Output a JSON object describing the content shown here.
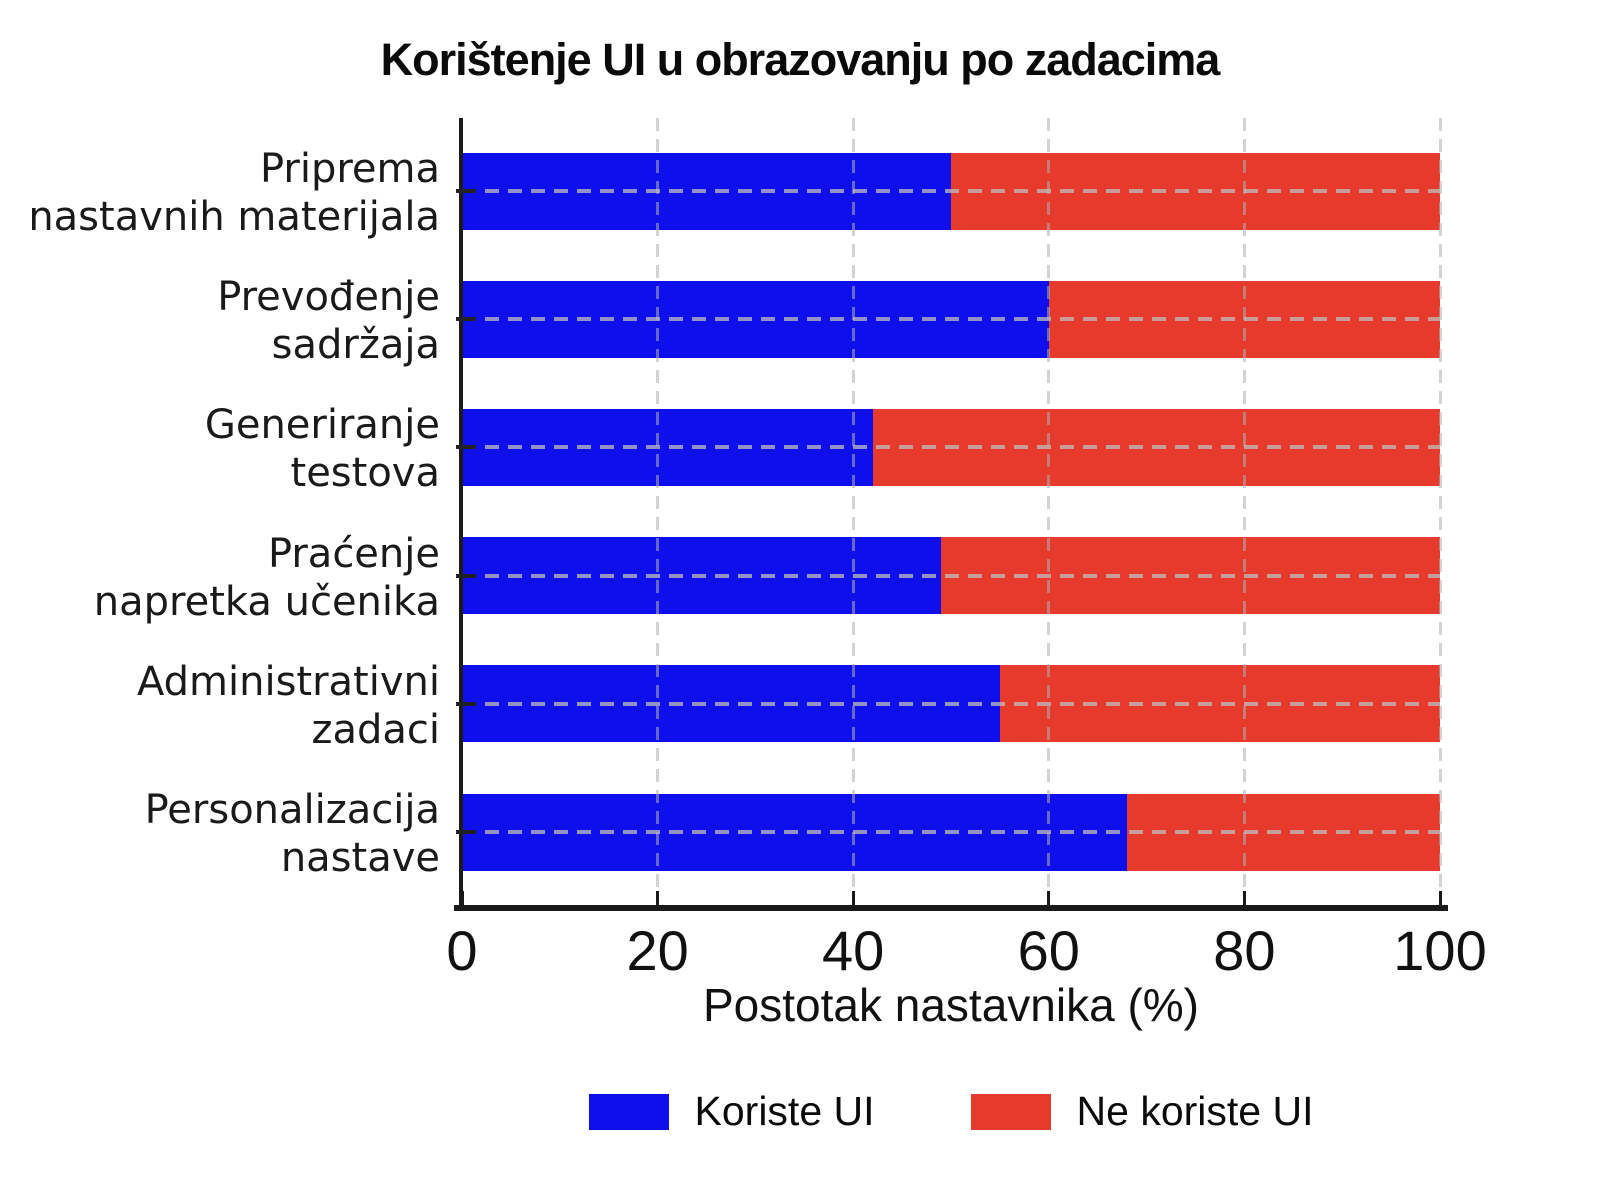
{
  "chart_data": {
    "type": "bar",
    "orientation": "horizontal",
    "stacked": true,
    "title": "Korištenje UI u obrazovanju po zadacima",
    "xlabel": "Postotak nastavnika (%)",
    "categories": [
      "Priprema nastavnih materijala",
      "Prevođenje sadržaja",
      "Generiranje testova",
      "Praćenje napretka učenika",
      "Administrativni zadaci",
      "Personalizacija nastave"
    ],
    "category_lines": [
      [
        "Priprema",
        "nastavnih materijala"
      ],
      [
        "Prevođenje",
        "sadržaja"
      ],
      [
        "Generiranje",
        "testova"
      ],
      [
        "Praćenje",
        "napretka učenika"
      ],
      [
        "Administrativni",
        "zadaci"
      ],
      [
        "Personalizacija",
        "nastave"
      ]
    ],
    "series": [
      {
        "name": "Koriste UI",
        "color": "#0f0feb",
        "values": [
          50,
          60,
          42,
          49,
          55,
          68
        ]
      },
      {
        "name": "Ne koriste UI",
        "color": "#e63b2c",
        "values": [
          50,
          40,
          58,
          51,
          45,
          32
        ]
      }
    ],
    "xlim": [
      0,
      100
    ],
    "xticks": [
      "0",
      "20",
      "40",
      "60",
      "80",
      "100"
    ],
    "grid": "dashed",
    "legend_position": "bottom-center",
    "colors": {
      "axis": "#1a1a1a",
      "gridline": "#c8c8c8",
      "background": "#ffffff"
    }
  }
}
